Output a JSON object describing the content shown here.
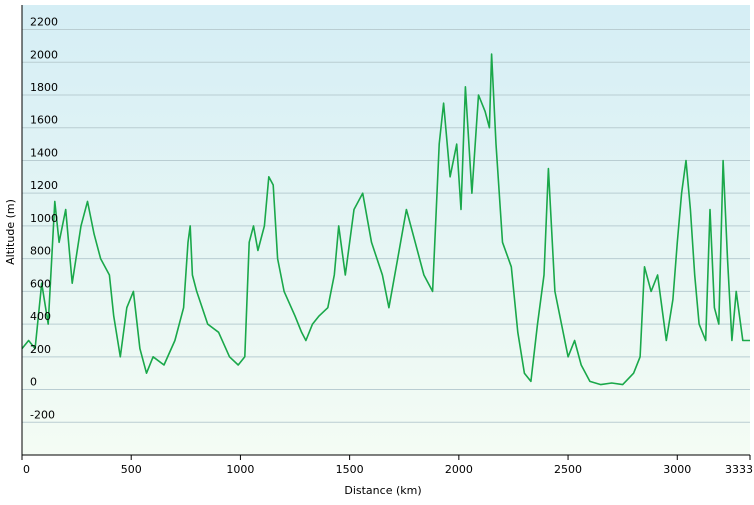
{
  "chart_data": {
    "type": "area",
    "title": "",
    "xlabel": "Distance  (km)",
    "ylabel": "Altitude (m)",
    "xlim": [
      0,
      3333
    ],
    "ylim": [
      -400,
      2350
    ],
    "x_ticks": [
      0,
      500,
      1000,
      1500,
      2000,
      2500,
      3000,
      3333
    ],
    "y_ticks": [
      -200,
      0,
      200,
      400,
      600,
      800,
      1000,
      1200,
      1400,
      1600,
      1800,
      2000,
      2200
    ],
    "grid": true,
    "legend": "none",
    "colors": {
      "line": "#1aa84a",
      "bg_top": "#d5eef5",
      "bg_bottom": "#f4fcf4",
      "grid": "#b9cdd2",
      "axis": "#000000"
    },
    "series": [
      {
        "points": [
          [
            0,
            250
          ],
          [
            30,
            300
          ],
          [
            60,
            250
          ],
          [
            90,
            650
          ],
          [
            120,
            400
          ],
          [
            150,
            1150
          ],
          [
            170,
            900
          ],
          [
            200,
            1100
          ],
          [
            230,
            650
          ],
          [
            270,
            1000
          ],
          [
            300,
            1150
          ],
          [
            330,
            950
          ],
          [
            360,
            800
          ],
          [
            400,
            700
          ],
          [
            420,
            450
          ],
          [
            450,
            200
          ],
          [
            480,
            500
          ],
          [
            510,
            600
          ],
          [
            540,
            250
          ],
          [
            570,
            100
          ],
          [
            600,
            200
          ],
          [
            650,
            150
          ],
          [
            700,
            300
          ],
          [
            740,
            500
          ],
          [
            760,
            900
          ],
          [
            770,
            1000
          ],
          [
            780,
            700
          ],
          [
            800,
            600
          ],
          [
            850,
            400
          ],
          [
            900,
            350
          ],
          [
            950,
            200
          ],
          [
            990,
            150
          ],
          [
            1020,
            200
          ],
          [
            1040,
            900
          ],
          [
            1060,
            1000
          ],
          [
            1080,
            850
          ],
          [
            1110,
            1000
          ],
          [
            1130,
            1300
          ],
          [
            1150,
            1250
          ],
          [
            1170,
            800
          ],
          [
            1200,
            600
          ],
          [
            1250,
            450
          ],
          [
            1280,
            350
          ],
          [
            1300,
            300
          ],
          [
            1330,
            400
          ],
          [
            1360,
            450
          ],
          [
            1400,
            500
          ],
          [
            1430,
            700
          ],
          [
            1450,
            1000
          ],
          [
            1480,
            700
          ],
          [
            1520,
            1100
          ],
          [
            1560,
            1200
          ],
          [
            1600,
            900
          ],
          [
            1650,
            700
          ],
          [
            1680,
            500
          ],
          [
            1720,
            800
          ],
          [
            1760,
            1100
          ],
          [
            1800,
            900
          ],
          [
            1840,
            700
          ],
          [
            1880,
            600
          ],
          [
            1910,
            1500
          ],
          [
            1930,
            1750
          ],
          [
            1960,
            1300
          ],
          [
            1990,
            1500
          ],
          [
            2010,
            1100
          ],
          [
            2030,
            1850
          ],
          [
            2060,
            1200
          ],
          [
            2090,
            1800
          ],
          [
            2120,
            1700
          ],
          [
            2140,
            1600
          ],
          [
            2150,
            2050
          ],
          [
            2170,
            1500
          ],
          [
            2200,
            900
          ],
          [
            2240,
            750
          ],
          [
            2270,
            350
          ],
          [
            2300,
            100
          ],
          [
            2330,
            50
          ],
          [
            2360,
            400
          ],
          [
            2390,
            700
          ],
          [
            2410,
            1350
          ],
          [
            2440,
            600
          ],
          [
            2470,
            400
          ],
          [
            2500,
            200
          ],
          [
            2530,
            300
          ],
          [
            2560,
            150
          ],
          [
            2600,
            50
          ],
          [
            2650,
            30
          ],
          [
            2700,
            40
          ],
          [
            2750,
            30
          ],
          [
            2800,
            100
          ],
          [
            2830,
            200
          ],
          [
            2850,
            750
          ],
          [
            2880,
            600
          ],
          [
            2910,
            700
          ],
          [
            2950,
            300
          ],
          [
            2980,
            550
          ],
          [
            3000,
            900
          ],
          [
            3020,
            1200
          ],
          [
            3040,
            1400
          ],
          [
            3060,
            1100
          ],
          [
            3080,
            700
          ],
          [
            3100,
            400
          ],
          [
            3130,
            300
          ],
          [
            3150,
            1100
          ],
          [
            3170,
            500
          ],
          [
            3190,
            400
          ],
          [
            3210,
            1400
          ],
          [
            3230,
            800
          ],
          [
            3250,
            300
          ],
          [
            3270,
            600
          ],
          [
            3300,
            300
          ],
          [
            3333,
            300
          ]
        ]
      }
    ]
  }
}
